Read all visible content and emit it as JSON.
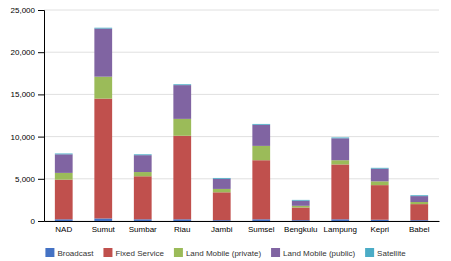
{
  "chart_data": {
    "type": "bar",
    "stacked": true,
    "categories": [
      "NAD",
      "Sumut",
      "Sumbar",
      "Riau",
      "Jambi",
      "Sumsel",
      "Bengkulu",
      "Lampung",
      "Kepri",
      "Babel"
    ],
    "series": [
      {
        "name": "Broadcast",
        "color": "#4472c4",
        "values": [
          200,
          300,
          200,
          200,
          100,
          200,
          100,
          200,
          150,
          100
        ]
      },
      {
        "name": "Fixed Service",
        "color": "#c0504d",
        "values": [
          4700,
          14200,
          5100,
          9900,
          3300,
          7000,
          1500,
          6500,
          4100,
          1900
        ]
      },
      {
        "name": "Land Mobile (private)",
        "color": "#9bbb59",
        "values": [
          800,
          2600,
          500,
          2000,
          400,
          1700,
          200,
          500,
          450,
          250
        ]
      },
      {
        "name": "Land Mobile (public)",
        "color": "#8064a2",
        "values": [
          2200,
          5700,
          2000,
          4000,
          1200,
          2500,
          600,
          2600,
          1500,
          700
        ]
      },
      {
        "name": "Satellite",
        "color": "#4bacc6",
        "values": [
          100,
          100,
          100,
          100,
          100,
          100,
          100,
          100,
          100,
          100
        ]
      }
    ],
    "ylim": [
      0,
      25000
    ],
    "yticks": [
      0,
      {
        "value": 5000,
        "label": "5,000"
      },
      {
        "value": 10000,
        "label": "10,000"
      },
      {
        "value": 15000,
        "label": "15,000"
      },
      {
        "value": 20000,
        "label": "20,000"
      },
      {
        "value": 25000,
        "label": "25,000"
      }
    ],
    "grid": true,
    "legend": "bottom"
  }
}
